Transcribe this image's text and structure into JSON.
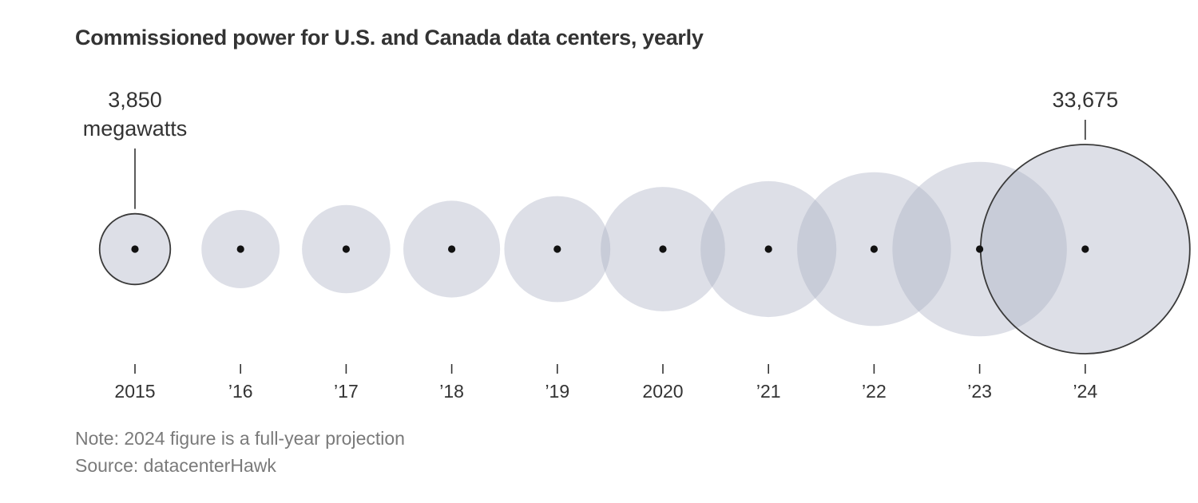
{
  "chart_data": {
    "type": "bubble",
    "title": "Commissioned power for U.S. and Canada data centers, yearly",
    "categories": [
      "2015",
      "’16",
      "’17",
      "’18",
      "’19",
      "2020",
      "’21",
      "’22",
      "’23",
      "’24"
    ],
    "values": [
      3850,
      4700,
      6000,
      7200,
      8650,
      11900,
      14200,
      18200,
      23400,
      33675
    ],
    "unit": "megawatts",
    "annotations": [
      {
        "index": 0,
        "value_label": "3,850",
        "unit_label": "megawatts"
      },
      {
        "index": 9,
        "value_label": "33,675",
        "unit_label": ""
      }
    ],
    "outlined_indices": [
      0,
      9
    ],
    "colors": {
      "bubble": "#a9b0c2",
      "outline": "#3a3a3a",
      "dot": "#111111",
      "text": "#333333",
      "footer_text": "#7a7a7a"
    }
  },
  "footer": {
    "note": "Note: 2024 figure is a full-year projection",
    "source": "Source: datacenterHawk"
  }
}
